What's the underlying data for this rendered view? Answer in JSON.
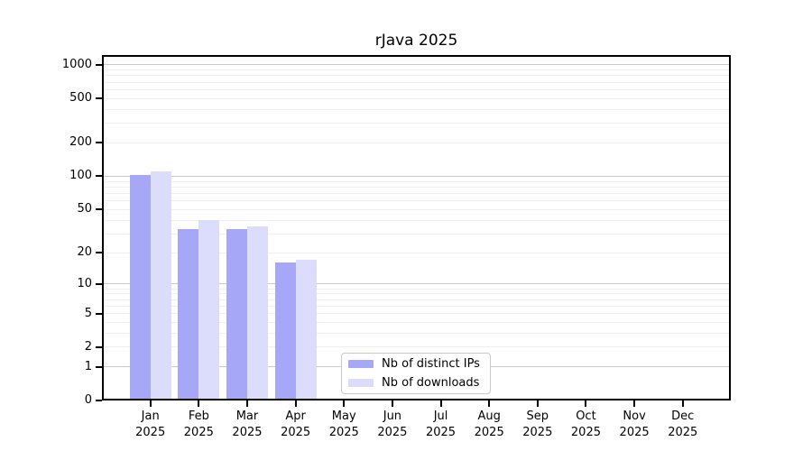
{
  "figure": {
    "background": "#ffffff"
  },
  "chart_data": {
    "type": "bar",
    "title": "rJava 2025",
    "y_scale": "log1p",
    "y_ticks": [
      0,
      1,
      2,
      5,
      10,
      20,
      50,
      100,
      200,
      500,
      1000
    ],
    "ylim": [
      0,
      1236
    ],
    "grid": true,
    "grid_major_values": [
      1,
      10,
      100,
      1000
    ],
    "categories": [
      "Jan",
      "Feb",
      "Mar",
      "Apr",
      "May",
      "Jun",
      "Jul",
      "Aug",
      "Sep",
      "Oct",
      "Nov",
      "Dec"
    ],
    "category_year": "2025",
    "series": [
      {
        "name": "Nb of distinct IPs",
        "color": "#a7a7f8",
        "values": [
          102,
          33,
          33,
          16,
          0,
          0,
          0,
          0,
          0,
          0,
          0,
          0
        ]
      },
      {
        "name": "Nb of downloads",
        "color": "#dcdcfc",
        "values": [
          111,
          40,
          35,
          17,
          0,
          0,
          0,
          0,
          0,
          0,
          0,
          0
        ]
      }
    ],
    "legend": {
      "position": "lower center",
      "entries": [
        "Nb of distinct IPs",
        "Nb of downloads"
      ]
    },
    "axis_color": "#000000",
    "grid_major_color": "#c9c9c9",
    "grid_minor_color": "#efefef"
  }
}
